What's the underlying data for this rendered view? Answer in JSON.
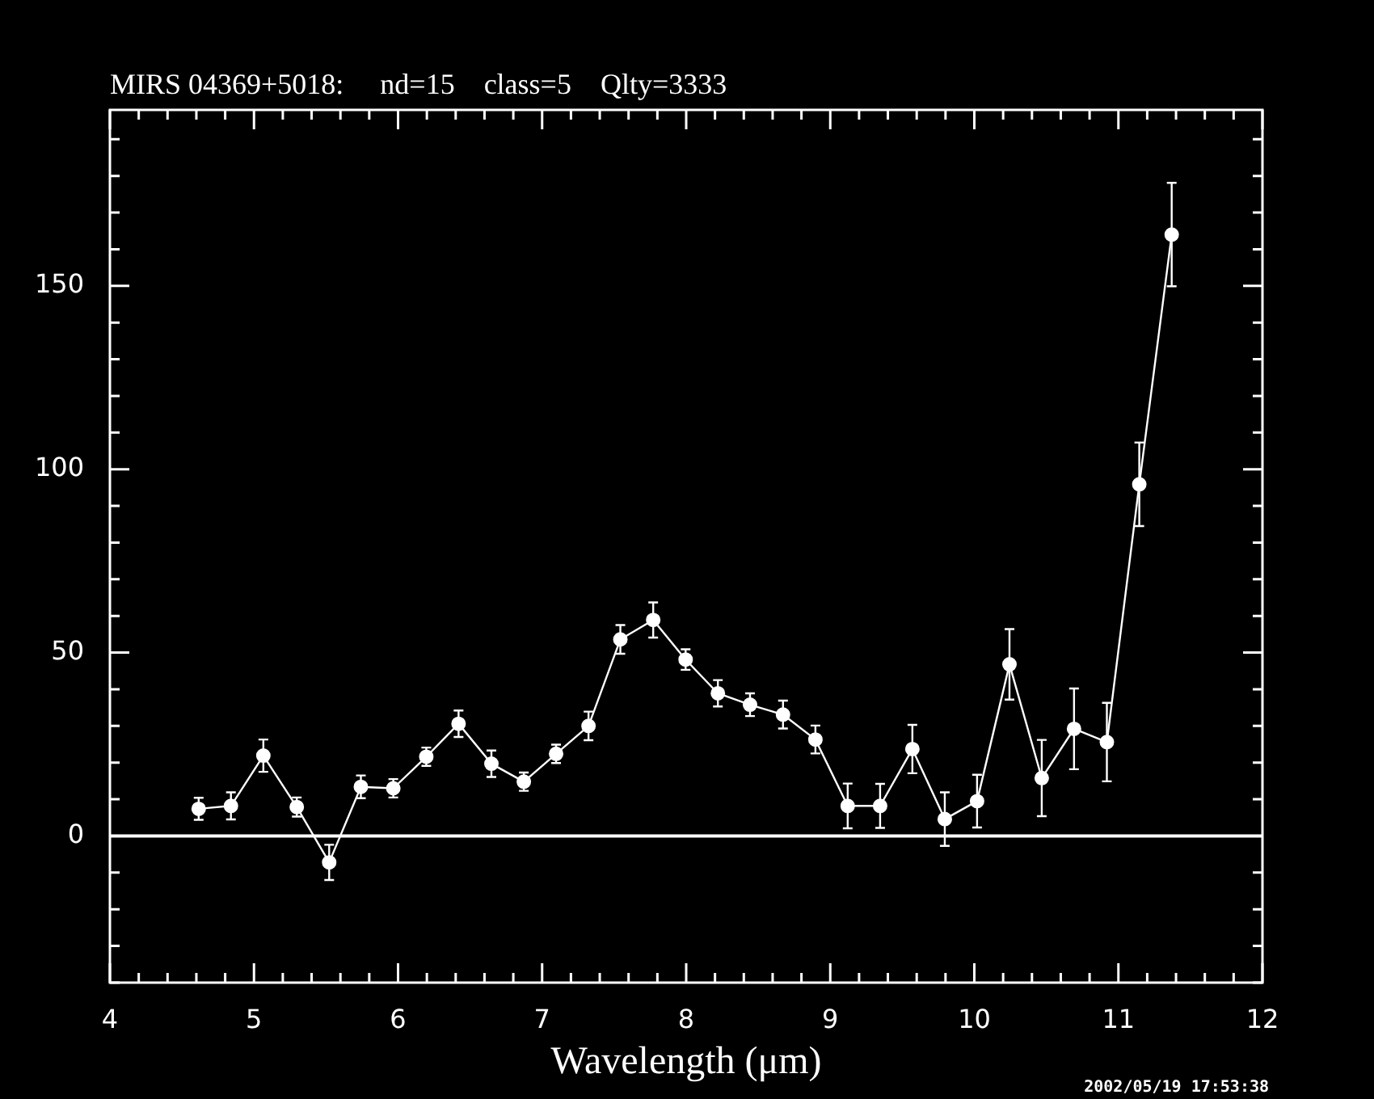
{
  "chart_data": {
    "type": "line",
    "title": "MIRS 04369+5018:     nd=15    class=5    Qlty=3333",
    "xlabel": "Wavelength (μm)",
    "x": [
      4.616,
      4.84,
      5.065,
      5.297,
      5.522,
      5.742,
      5.967,
      6.196,
      6.42,
      6.648,
      6.873,
      7.097,
      7.322,
      7.543,
      7.771,
      7.996,
      8.22,
      8.443,
      8.672,
      8.897,
      9.121,
      9.346,
      9.57,
      9.795,
      10.019,
      10.244,
      10.468,
      10.692,
      10.92,
      11.145,
      11.37
    ],
    "series": [
      {
        "color": "#ffffff",
        "marker": "circle",
        "line_style": "solid",
        "values": [
          7.4,
          8.2,
          21.9,
          7.9,
          -7.2,
          13.4,
          13.0,
          21.6,
          30.6,
          19.7,
          14.8,
          22.4,
          30.0,
          53.6,
          58.9,
          48.1,
          38.9,
          35.8,
          33.1,
          26.3,
          8.2,
          8.2,
          23.7,
          4.6,
          9.5,
          46.8,
          15.8,
          29.2,
          25.6,
          95.9,
          164.0
        ],
        "errors": [
          3,
          3.7,
          4.4,
          2.6,
          4.8,
          3.1,
          2.5,
          2.5,
          3.6,
          3.6,
          2.5,
          2.5,
          3.9,
          3.9,
          4.8,
          2.8,
          3.6,
          3.1,
          3.8,
          3.8,
          6.1,
          6,
          6.6,
          7.3,
          7.2,
          9.6,
          10.4,
          11,
          10.7,
          11.4,
          14.1
        ]
      }
    ],
    "xlim": [
      4,
      12
    ],
    "ylim": [
      -40,
      198
    ],
    "xticks": [
      4,
      {
        "value": 4.2,
        "label": null
      },
      {
        "value": 4.4,
        "label": null
      },
      {
        "value": 4.6,
        "label": null
      },
      {
        "value": 4.8,
        "label": null
      },
      5,
      {
        "value": 5.2,
        "label": null
      },
      {
        "value": 5.4,
        "label": null
      },
      {
        "value": 5.6,
        "label": null
      },
      {
        "value": 5.8,
        "label": null
      },
      6,
      {
        "value": 6.2,
        "label": null
      },
      {
        "value": 6.4,
        "label": null
      },
      {
        "value": 6.6,
        "label": null
      },
      {
        "value": 6.8,
        "label": null
      },
      7,
      {
        "value": 7.2,
        "label": null
      },
      {
        "value": 7.4,
        "label": null
      },
      {
        "value": 7.6,
        "label": null
      },
      {
        "value": 7.8,
        "label": null
      },
      8,
      {
        "value": 8.2,
        "label": null
      },
      {
        "value": 8.4,
        "label": null
      },
      {
        "value": 8.6,
        "label": null
      },
      {
        "value": 8.8,
        "label": null
      },
      9,
      {
        "value": 9.2,
        "label": null
      },
      {
        "value": 9.4,
        "label": null
      },
      {
        "value": 9.6,
        "label": null
      },
      {
        "value": 9.8,
        "label": null
      },
      10,
      {
        "value": 10.2,
        "label": null
      },
      {
        "value": 10.4,
        "label": null
      },
      {
        "value": 10.6,
        "label": null
      },
      {
        "value": 10.8,
        "label": null
      },
      11,
      {
        "value": 11.2,
        "label": null
      },
      {
        "value": 11.4,
        "label": null
      },
      {
        "value": 11.6,
        "label": null
      },
      {
        "value": 11.8,
        "label": null
      },
      12
    ],
    "yticks": [
      {
        "value": -40,
        "label": null
      },
      {
        "value": -30,
        "label": null
      },
      {
        "value": -20,
        "label": null
      },
      {
        "value": -10,
        "label": null
      },
      0,
      {
        "value": 10,
        "label": null
      },
      {
        "value": 20,
        "label": null
      },
      {
        "value": 30,
        "label": null
      },
      {
        "value": 40,
        "label": null
      },
      50,
      {
        "value": 60,
        "label": null
      },
      {
        "value": 70,
        "label": null
      },
      {
        "value": 80,
        "label": null
      },
      {
        "value": 90,
        "label": null
      },
      100,
      {
        "value": 110,
        "label": null
      },
      {
        "value": 120,
        "label": null
      },
      {
        "value": 130,
        "label": null
      },
      {
        "value": 140,
        "label": null
      },
      150,
      {
        "value": 160,
        "label": null
      },
      {
        "value": 170,
        "label": null
      },
      {
        "value": 180,
        "label": null
      },
      {
        "value": 190,
        "label": null
      }
    ],
    "ref_lines": [
      {
        "axis": "y",
        "value": 0,
        "color": "#ffffff"
      }
    ],
    "annotations": [
      "2002/05/19 17:53:38"
    ]
  }
}
